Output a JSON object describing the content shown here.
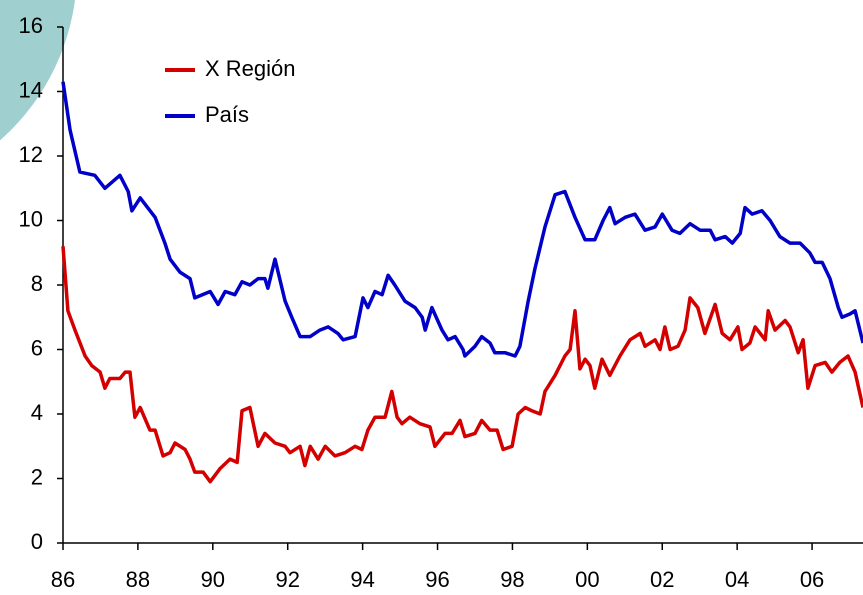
{
  "chart_data": {
    "type": "line",
    "xlim": [
      1986,
      2007.36
    ],
    "ylim": [
      0,
      16
    ],
    "xticks": [
      {
        "value": 1986,
        "label": "86"
      },
      {
        "value": 1988,
        "label": "88"
      },
      {
        "value": 1990,
        "label": "90"
      },
      {
        "value": 1992,
        "label": "92"
      },
      {
        "value": 1994,
        "label": "94"
      },
      {
        "value": 1996,
        "label": "96"
      },
      {
        "value": 1998,
        "label": "98"
      },
      {
        "value": 2000,
        "label": "00"
      },
      {
        "value": 2002,
        "label": "02"
      },
      {
        "value": 2004,
        "label": "04"
      },
      {
        "value": 2006,
        "label": "06"
      }
    ],
    "yticks": [
      0,
      2,
      4,
      6,
      8,
      10,
      12,
      14,
      16
    ],
    "legend": "top-left",
    "series": [
      {
        "name": "X Región",
        "color": "#d40000",
        "x": [
          1986.0,
          1986.13,
          1986.32,
          1986.59,
          1986.77,
          1986.99,
          1987.12,
          1987.25,
          1987.52,
          1987.66,
          1987.79,
          1987.92,
          1988.06,
          1988.32,
          1988.46,
          1988.67,
          1988.86,
          1988.99,
          1989.26,
          1989.39,
          1989.52,
          1989.74,
          1989.93,
          1990.19,
          1990.46,
          1990.65,
          1990.78,
          1990.99,
          1991.21,
          1991.39,
          1991.66,
          1991.93,
          1992.06,
          1992.33,
          1992.46,
          1992.6,
          1992.81,
          1993.0,
          1993.26,
          1993.53,
          1993.8,
          1993.98,
          1994.14,
          1994.33,
          1994.6,
          1994.78,
          1994.92,
          1995.05,
          1995.26,
          1995.53,
          1995.8,
          1995.93,
          1996.2,
          1996.39,
          1996.6,
          1996.73,
          1997.0,
          1997.18,
          1997.4,
          1997.59,
          1997.75,
          1997.99,
          1998.15,
          1998.34,
          1998.52,
          1998.74,
          1998.87,
          1999.14,
          1999.4,
          1999.54,
          1999.67,
          1999.8,
          1999.94,
          2000.07,
          2000.2,
          2000.39,
          2000.6,
          2000.87,
          2001.14,
          2001.41,
          2001.54,
          2001.81,
          2001.94,
          2002.07,
          2002.21,
          2002.42,
          2002.61,
          2002.74,
          2002.95,
          2003.14,
          2003.41,
          2003.6,
          2003.81,
          2004.02,
          2004.13,
          2004.34,
          2004.48,
          2004.75,
          2004.83,
          2005.01,
          2005.28,
          2005.41,
          2005.63,
          2005.76,
          2005.89,
          2006.08,
          2006.35,
          2006.53,
          2006.74,
          2006.96,
          2007.15,
          2007.36
        ],
        "values": [
          9.2,
          7.2,
          6.6,
          5.8,
          5.5,
          5.3,
          4.8,
          5.1,
          5.1,
          5.3,
          5.3,
          3.9,
          4.2,
          3.5,
          3.5,
          2.7,
          2.8,
          3.1,
          2.9,
          2.6,
          2.2,
          2.2,
          1.9,
          2.3,
          2.6,
          2.5,
          4.1,
          4.2,
          3.0,
          3.4,
          3.1,
          3.0,
          2.8,
          3.0,
          2.4,
          3.0,
          2.6,
          3.0,
          2.7,
          2.8,
          3.0,
          2.9,
          3.5,
          3.9,
          3.9,
          4.7,
          3.9,
          3.7,
          3.9,
          3.7,
          3.6,
          3.0,
          3.4,
          3.4,
          3.8,
          3.3,
          3.4,
          3.8,
          3.5,
          3.5,
          2.9,
          3.0,
          4.0,
          4.2,
          4.1,
          4.0,
          4.7,
          5.2,
          5.8,
          6.0,
          7.2,
          5.4,
          5.7,
          5.5,
          4.8,
          5.7,
          5.2,
          5.8,
          6.3,
          6.5,
          6.1,
          6.3,
          6.0,
          6.7,
          6.0,
          6.1,
          6.6,
          7.6,
          7.3,
          6.5,
          7.4,
          6.5,
          6.3,
          6.7,
          6.0,
          6.2,
          6.7,
          6.3,
          7.2,
          6.6,
          6.9,
          6.7,
          5.9,
          6.3,
          4.8,
          5.5,
          5.6,
          5.3,
          5.6,
          5.8,
          5.3,
          4.2
        ]
      },
      {
        "name": "País",
        "color": "#0000c8",
        "x": [
          1986.0,
          1986.19,
          1986.45,
          1986.85,
          1987.12,
          1987.52,
          1987.74,
          1987.84,
          1988.06,
          1988.46,
          1988.72,
          1988.86,
          1989.12,
          1989.39,
          1989.52,
          1989.93,
          1990.14,
          1990.33,
          1990.59,
          1990.78,
          1990.99,
          1991.21,
          1991.39,
          1991.47,
          1991.66,
          1991.93,
          1992.11,
          1992.33,
          1992.6,
          1992.86,
          1993.08,
          1993.34,
          1993.48,
          1993.8,
          1994.01,
          1994.14,
          1994.33,
          1994.52,
          1994.68,
          1994.86,
          1995.13,
          1995.4,
          1995.59,
          1995.67,
          1995.85,
          1996.12,
          1996.28,
          1996.47,
          1996.68,
          1996.73,
          1997.0,
          1997.18,
          1997.4,
          1997.53,
          1997.8,
          1998.07,
          1998.2,
          1998.42,
          1998.6,
          1998.87,
          1999.14,
          1999.4,
          1999.67,
          1999.94,
          2000.2,
          2000.42,
          2000.6,
          2000.74,
          2001.01,
          2001.27,
          2001.54,
          2001.81,
          2002.0,
          2002.26,
          2002.47,
          2002.74,
          2003.01,
          2003.28,
          2003.41,
          2003.68,
          2003.87,
          2004.08,
          2004.21,
          2004.4,
          2004.66,
          2004.88,
          2005.14,
          2005.41,
          2005.68,
          2005.94,
          2006.08,
          2006.27,
          2006.48,
          2006.7,
          2006.8,
          2007.01,
          2007.15,
          2007.36
        ],
        "values": [
          14.3,
          12.8,
          11.5,
          11.4,
          11.0,
          11.4,
          10.9,
          10.3,
          10.7,
          10.1,
          9.3,
          8.8,
          8.4,
          8.2,
          7.6,
          7.8,
          7.4,
          7.8,
          7.7,
          8.1,
          8.0,
          8.2,
          8.2,
          7.9,
          8.8,
          7.5,
          7.0,
          6.4,
          6.4,
          6.6,
          6.7,
          6.5,
          6.3,
          6.4,
          7.6,
          7.3,
          7.8,
          7.7,
          8.3,
          8.0,
          7.5,
          7.3,
          7.0,
          6.6,
          7.3,
          6.6,
          6.3,
          6.4,
          6.0,
          5.8,
          6.1,
          6.4,
          6.2,
          5.9,
          5.9,
          5.8,
          6.1,
          7.5,
          8.5,
          9.8,
          10.8,
          10.9,
          10.1,
          9.4,
          9.4,
          10.0,
          10.4,
          9.9,
          10.1,
          10.2,
          9.7,
          9.8,
          10.2,
          9.7,
          9.6,
          9.9,
          9.7,
          9.7,
          9.4,
          9.5,
          9.3,
          9.6,
          10.4,
          10.2,
          10.3,
          10.0,
          9.5,
          9.3,
          9.3,
          9.0,
          8.7,
          8.7,
          8.2,
          7.3,
          7.0,
          7.1,
          7.2,
          6.2
        ]
      }
    ]
  }
}
